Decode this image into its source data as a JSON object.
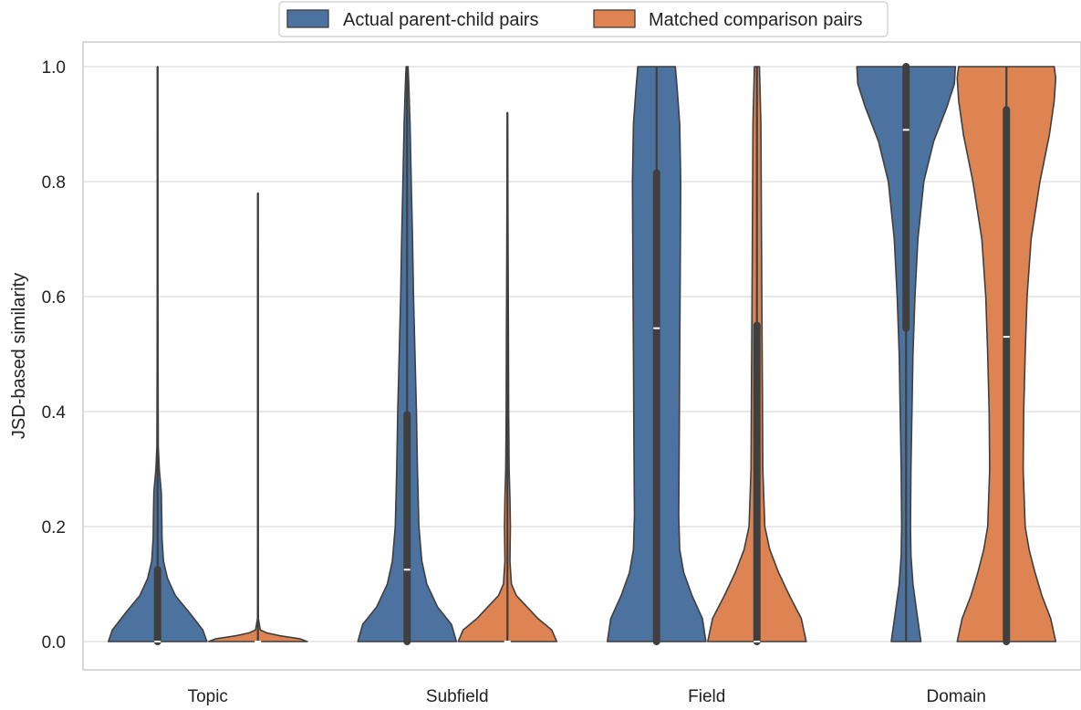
{
  "chart_data": {
    "type": "violin",
    "categories": [
      "Topic",
      "Subfield",
      "Field",
      "Domain"
    ],
    "xlabel": "",
    "ylabel": "JSD-based similarity",
    "ylim": [
      0,
      1.0
    ],
    "yticks": [
      "0.0",
      "0.2",
      "0.4",
      "0.6",
      "0.8",
      "1.0"
    ],
    "grid": true,
    "legend_position": "top-center",
    "series": [
      {
        "name": "Actual parent-child pairs",
        "color": "#4c72a0",
        "violins": [
          {
            "min": 0.0,
            "max": 1.0,
            "q1": 0.0,
            "median": 0.0,
            "q3": 0.125,
            "density": [
              [
                0.0,
                1.0
              ],
              [
                0.02,
                0.92
              ],
              [
                0.05,
                0.65
              ],
              [
                0.08,
                0.36
              ],
              [
                0.11,
                0.2
              ],
              [
                0.14,
                0.12
              ],
              [
                0.18,
                0.09
              ],
              [
                0.22,
                0.085
              ],
              [
                0.26,
                0.075
              ],
              [
                0.3,
                0.035
              ],
              [
                0.34,
                0.014
              ],
              [
                0.45,
                0.01
              ],
              [
                0.6,
                0.007
              ],
              [
                0.8,
                0.004
              ],
              [
                1.0,
                0.002
              ]
            ]
          },
          {
            "min": 0.0,
            "max": 1.0,
            "q1": 0.0,
            "median": 0.125,
            "q3": 0.395,
            "density": [
              [
                0.0,
                1.0
              ],
              [
                0.03,
                0.9
              ],
              [
                0.06,
                0.62
              ],
              [
                0.1,
                0.4
              ],
              [
                0.14,
                0.3
              ],
              [
                0.2,
                0.24
              ],
              [
                0.3,
                0.21
              ],
              [
                0.4,
                0.19
              ],
              [
                0.5,
                0.16
              ],
              [
                0.6,
                0.13
              ],
              [
                0.7,
                0.11
              ],
              [
                0.8,
                0.085
              ],
              [
                0.9,
                0.06
              ],
              [
                0.97,
                0.035
              ],
              [
                1.0,
                0.02
              ]
            ]
          },
          {
            "min": 0.0,
            "max": 1.0,
            "q1": 0.0,
            "median": 0.545,
            "q3": 0.815,
            "density": [
              [
                0.0,
                1.0
              ],
              [
                0.04,
                0.93
              ],
              [
                0.08,
                0.72
              ],
              [
                0.12,
                0.55
              ],
              [
                0.16,
                0.47
              ],
              [
                0.22,
                0.45
              ],
              [
                0.35,
                0.46
              ],
              [
                0.5,
                0.47
              ],
              [
                0.65,
                0.48
              ],
              [
                0.8,
                0.49
              ],
              [
                0.9,
                0.47
              ],
              [
                0.96,
                0.42
              ],
              [
                1.0,
                0.38
              ]
            ]
          },
          {
            "min": 0.0,
            "max": 1.0,
            "q1": 0.545,
            "median": 0.89,
            "q3": 1.0,
            "density": [
              [
                0.0,
                0.3
              ],
              [
                0.05,
                0.22
              ],
              [
                0.1,
                0.14
              ],
              [
                0.15,
                0.1
              ],
              [
                0.2,
                0.09
              ],
              [
                0.3,
                0.1
              ],
              [
                0.4,
                0.12
              ],
              [
                0.5,
                0.14
              ],
              [
                0.6,
                0.18
              ],
              [
                0.7,
                0.24
              ],
              [
                0.8,
                0.36
              ],
              [
                0.87,
                0.56
              ],
              [
                0.93,
                0.83
              ],
              [
                0.97,
                0.98
              ],
              [
                1.0,
                1.0
              ]
            ]
          }
        ]
      },
      {
        "name": "Matched comparison pairs",
        "color": "#dd8452",
        "violins": [
          {
            "min": 0.0,
            "max": 0.78,
            "q1": 0.0,
            "median": 0.0,
            "q3": 0.0,
            "density": [
              [
                0.0,
                1.0
              ],
              [
                0.005,
                0.85
              ],
              [
                0.01,
                0.45
              ],
              [
                0.015,
                0.18
              ],
              [
                0.02,
                0.05
              ],
              [
                0.04,
                0.008
              ],
              [
                0.1,
                0.006
              ],
              [
                0.3,
                0.005
              ],
              [
                0.6,
                0.004
              ],
              [
                0.78,
                0.002
              ]
            ]
          },
          {
            "min": 0.0,
            "max": 0.92,
            "q1": 0.0,
            "median": 0.0,
            "q3": 0.0,
            "density": [
              [
                0.0,
                1.0
              ],
              [
                0.02,
                0.9
              ],
              [
                0.04,
                0.62
              ],
              [
                0.06,
                0.4
              ],
              [
                0.08,
                0.18
              ],
              [
                0.1,
                0.08
              ],
              [
                0.14,
                0.05
              ],
              [
                0.2,
                0.06
              ],
              [
                0.25,
                0.05
              ],
              [
                0.3,
                0.035
              ],
              [
                0.4,
                0.025
              ],
              [
                0.55,
                0.02
              ],
              [
                0.7,
                0.012
              ],
              [
                0.85,
                0.006
              ],
              [
                0.92,
                0.003
              ]
            ]
          },
          {
            "min": 0.0,
            "max": 1.0,
            "q1": 0.0,
            "median": 0.0,
            "q3": 0.55,
            "density": [
              [
                0.0,
                1.0
              ],
              [
                0.04,
                0.9
              ],
              [
                0.08,
                0.66
              ],
              [
                0.12,
                0.44
              ],
              [
                0.16,
                0.26
              ],
              [
                0.2,
                0.16
              ],
              [
                0.3,
                0.12
              ],
              [
                0.45,
                0.11
              ],
              [
                0.6,
                0.1
              ],
              [
                0.75,
                0.09
              ],
              [
                0.9,
                0.08
              ],
              [
                0.97,
                0.06
              ],
              [
                1.0,
                0.05
              ]
            ]
          },
          {
            "min": 0.0,
            "max": 1.0,
            "q1": 0.0,
            "median": 0.53,
            "q3": 0.925,
            "density": [
              [
                0.0,
                1.0
              ],
              [
                0.04,
                0.9
              ],
              [
                0.08,
                0.72
              ],
              [
                0.12,
                0.58
              ],
              [
                0.16,
                0.46
              ],
              [
                0.2,
                0.38
              ],
              [
                0.3,
                0.34
              ],
              [
                0.4,
                0.35
              ],
              [
                0.5,
                0.38
              ],
              [
                0.6,
                0.42
              ],
              [
                0.7,
                0.5
              ],
              [
                0.8,
                0.68
              ],
              [
                0.88,
                0.87
              ],
              [
                0.94,
                0.97
              ],
              [
                0.98,
                1.0
              ],
              [
                1.0,
                0.97
              ]
            ]
          }
        ]
      }
    ]
  }
}
